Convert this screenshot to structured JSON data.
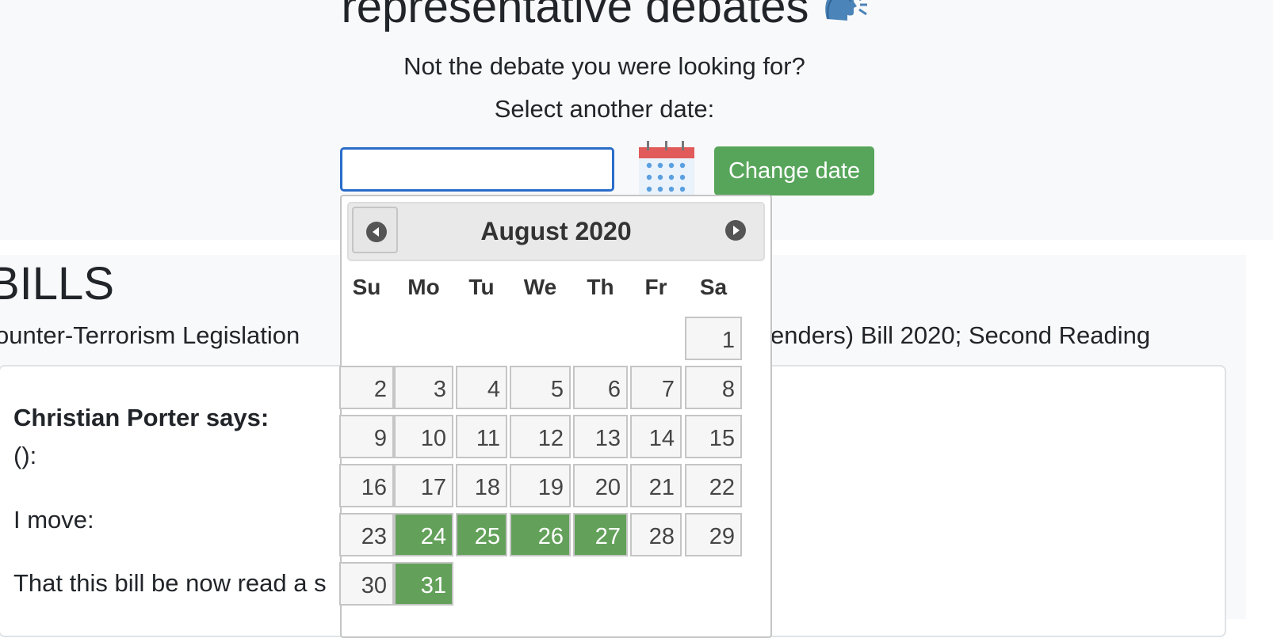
{
  "header": {
    "title": "representative debates",
    "subtitle": "Not the debate you were looking for?",
    "select_prompt": "Select another date:",
    "date_input_value": "",
    "change_date_label": "Change date",
    "calendar_icon": "calendar-icon",
    "speaker_icon": "speaking-head-icon"
  },
  "section": {
    "heading": "BILLS",
    "debate_title_left": "ounter-Terrorism Legislation",
    "debate_title_right": "enders) Bill 2020; Second Reading",
    "speaker": "Christian Porter says:",
    "lines": [
      "():",
      "I move:",
      "That this bill be now read a s"
    ]
  },
  "datepicker": {
    "month_label": "August 2020",
    "prev_icon": "prev-month-icon",
    "next_icon": "next-month-icon",
    "weekdays": [
      "Su",
      "Mo",
      "Tu",
      "We",
      "Th",
      "Fr",
      "Sa"
    ],
    "first_weekday_index": 6,
    "days": [
      "1",
      "2",
      "3",
      "4",
      "5",
      "6",
      "7",
      "8",
      "9",
      "10",
      "11",
      "12",
      "13",
      "14",
      "15",
      "16",
      "17",
      "18",
      "19",
      "20",
      "21",
      "22",
      "23",
      "24",
      "25",
      "26",
      "27",
      "28",
      "29",
      "30",
      "31"
    ],
    "highlighted_days": [
      24,
      25,
      26,
      27,
      31
    ],
    "highlight_color": "#63a15a"
  }
}
